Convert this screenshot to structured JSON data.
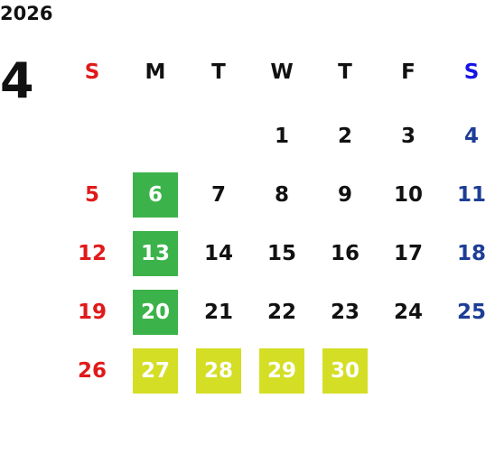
{
  "year": "2026",
  "month": "4",
  "weekdays": [
    "S",
    "M",
    "T",
    "W",
    "T",
    "F",
    "S"
  ],
  "weekday_colors": [
    "#e01a1a",
    "#111111",
    "#111111",
    "#111111",
    "#111111",
    "#111111",
    "#1414e6"
  ],
  "day_colors": [
    "#e01a1a",
    "#111111",
    "#111111",
    "#111111",
    "#111111",
    "#111111",
    "#1e3d96"
  ],
  "weeks": [
    [
      null,
      null,
      null,
      1,
      2,
      3,
      4
    ],
    [
      5,
      6,
      7,
      8,
      9,
      10,
      11
    ],
    [
      12,
      13,
      14,
      15,
      16,
      17,
      18
    ],
    [
      19,
      20,
      21,
      22,
      23,
      24,
      25
    ],
    [
      26,
      27,
      28,
      29,
      30,
      null,
      null
    ]
  ],
  "highlights": [
    {
      "days": [
        6,
        13,
        20
      ],
      "color": "#3cb34a"
    },
    {
      "days": [
        27,
        28,
        29,
        30
      ],
      "color": "#d4de24"
    }
  ]
}
